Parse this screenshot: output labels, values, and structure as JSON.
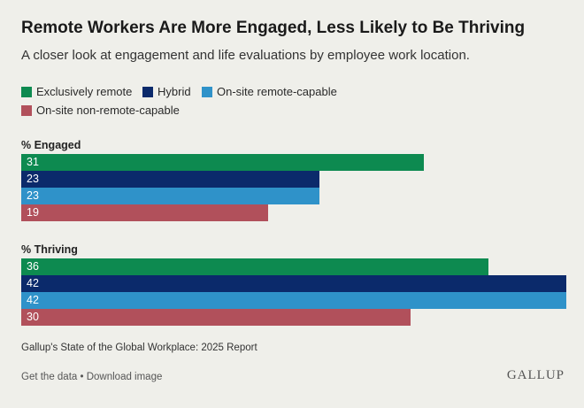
{
  "chart_data": {
    "type": "bar",
    "orientation": "horizontal",
    "title": "Remote Workers Are More Engaged, Less Likely to Be Thriving",
    "subtitle": "A closer look at engagement and life evaluations by employee work location.",
    "categories": [
      "% Engaged",
      "% Thriving"
    ],
    "series": [
      {
        "name": "Exclusively remote",
        "color": "#0d8a50",
        "values": [
          31,
          36
        ]
      },
      {
        "name": "Hybrid",
        "color": "#0b2a6b",
        "values": [
          23,
          42
        ]
      },
      {
        "name": "On-site remote-capable",
        "color": "#2f92c9",
        "values": [
          23,
          42
        ]
      },
      {
        "name": "On-site non-remote-capable",
        "color": "#b1505b",
        "values": [
          19,
          30
        ]
      }
    ],
    "xlim": [
      0,
      42
    ],
    "legend_position": "top",
    "grid": false,
    "source": "Gallup's State of the Global Workplace: 2025 Report"
  },
  "footer": {
    "links": "Get the data • Download image",
    "brand": "GALLUP"
  }
}
